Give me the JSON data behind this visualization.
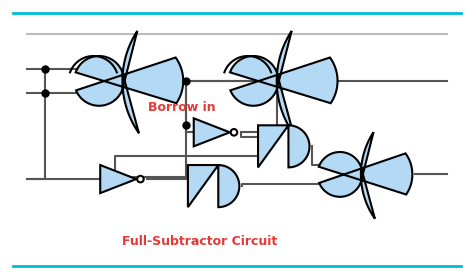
{
  "title": "Full-Subtractor Circuit",
  "borrow_label": "Borrow in",
  "bg_color": "#ffffff",
  "border_color": "#00bcd4",
  "gate_fill": "#b3d9f5",
  "gate_edge": "#000000",
  "wire_color": "#555555",
  "dot_color": "#000000",
  "label_color_red": "#e53935",
  "fig_width": 4.74,
  "fig_height": 2.74,
  "dpi": 100
}
